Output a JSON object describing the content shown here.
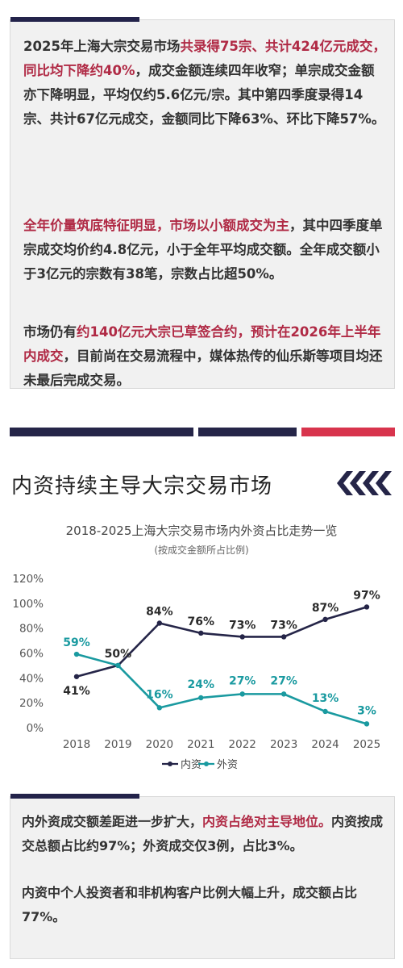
{
  "box1": {
    "p1": [
      {
        "t": "2025年上海大宗交易市场",
        "red": false
      },
      {
        "t": "共录得75宗、共计424亿元成交，同比均下降约40%",
        "red": true
      },
      {
        "t": "，成交金额连续四年收窄；单宗成交金额亦下降明显，平均仅约5.6亿元/宗。其中第四季度录得14宗、共计67亿元成交，金额同比下降63%、环比下降57%。",
        "red": false
      }
    ],
    "p2": [
      {
        "t": "全年价量筑底特征明显，市场以小额成交为主",
        "red": true
      },
      {
        "t": "，其中四季度单宗成交均价约4.8亿元，小于全年平均成交额。全年成交额小于3亿元的宗数有38笔，宗数占比超50%。",
        "red": false
      }
    ],
    "p3": [
      {
        "t": "市场仍有",
        "red": false
      },
      {
        "t": "约140亿元大宗已草签合约，预计在2026年上半年内成交",
        "red": true
      },
      {
        "t": "，目前尚在交易流程中，媒体热传的仙乐斯等项目均还未最后完成交易。",
        "red": false
      }
    ]
  },
  "section": {
    "title": "内资持续主导大宗交易市场"
  },
  "chart_data": {
    "type": "line",
    "title": "2018-2025上海大宗交易市场内外资占比走势一览",
    "subtitle": "(按成交金额所占比例)",
    "x": [
      "2018",
      "2019",
      "2020",
      "2021",
      "2022",
      "2023",
      "2024",
      "2025"
    ],
    "series": [
      {
        "name": "内资",
        "color": "#252548",
        "values": [
          41,
          50,
          84,
          76,
          73,
          73,
          87,
          97
        ],
        "labels": [
          "41%",
          "50%",
          "84%",
          "76%",
          "73%",
          "73%",
          "87%",
          "97%"
        ]
      },
      {
        "name": "外资",
        "color": "#1a9aa0",
        "values": [
          59,
          50,
          16,
          24,
          27,
          27,
          13,
          3
        ],
        "labels": [
          "59%",
          "",
          "16%",
          "24%",
          "27%",
          "27%",
          "13%",
          "3%"
        ]
      }
    ],
    "ylim": [
      0,
      120
    ],
    "yticks": [
      "0%",
      "20%",
      "40%",
      "60%",
      "80%",
      "100%",
      "120%"
    ],
    "grid": false,
    "legend": "bottom"
  },
  "box2": {
    "q1": [
      {
        "t": "内外资成交额差距进一步扩大，",
        "red": false
      },
      {
        "t": "内资占绝对主导地位。",
        "red": true
      },
      {
        "t": "内资按成交总额占比约97%；外资成交仅3例，占比3%。",
        "red": false
      }
    ],
    "q2": [
      {
        "t": "内资中个人投资者和非机构客户比例大幅上升，成交额占比77%。",
        "red": false
      }
    ]
  },
  "colors": {
    "navy": "#252548",
    "red": "#d8344d",
    "text_red": "#b02a45",
    "teal": "#1a9aa0"
  }
}
